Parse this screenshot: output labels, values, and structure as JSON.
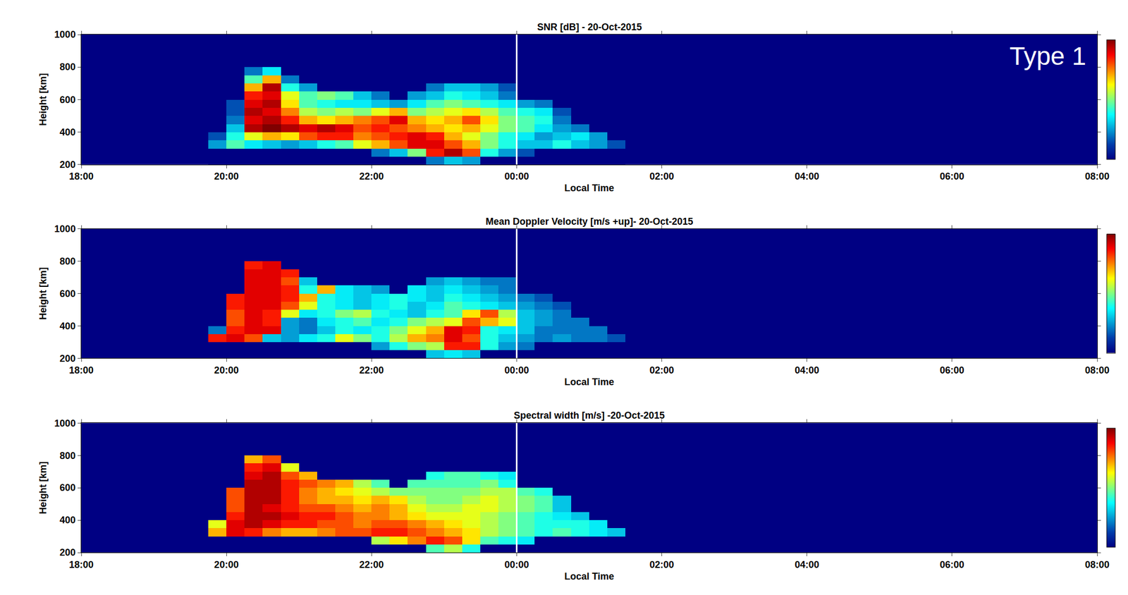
{
  "chart_data": [
    {
      "type": "heatmap",
      "title": "SNR [dB] - 20-Oct-2015",
      "annotation": "Type 1",
      "x_label": "Local Time",
      "y_label": "Height [km]",
      "xlim": [
        18,
        32
      ],
      "xticks": [
        {
          "value": 18,
          "label": "18:00"
        },
        {
          "value": 20,
          "label": "20:00"
        },
        {
          "value": 22,
          "label": "22:00"
        },
        {
          "value": 24,
          "label": "00:00"
        },
        {
          "value": 26,
          "label": "02:00"
        },
        {
          "value": 28,
          "label": "04:00"
        },
        {
          "value": 30,
          "label": "06:00"
        },
        {
          "value": 32,
          "label": "08:00"
        }
      ],
      "ylim": [
        200,
        1000
      ],
      "yticks": [
        200,
        400,
        600,
        800,
        1000
      ],
      "vline_x": 24,
      "zlim": [
        0,
        20
      ],
      "x": [
        19.75,
        20,
        20.25,
        20.5,
        20.75,
        21,
        21.25,
        21.5,
        21.75,
        22,
        22.25,
        22.5,
        22.75,
        23,
        23.25,
        23.5,
        23.75,
        24,
        24.25,
        24.5,
        24.75,
        25,
        25.25,
        25.5
      ],
      "y": [
        200,
        250,
        300,
        350,
        400,
        450,
        500,
        550,
        600,
        650,
        700,
        750,
        800
      ],
      "z": [
        [
          0,
          0,
          0,
          0,
          0,
          0,
          0,
          0,
          0,
          0,
          0,
          0,
          4,
          6,
          5,
          0,
          0,
          0,
          0,
          0,
          0,
          0,
          0
        ],
        [
          0,
          0,
          0,
          0,
          0,
          0,
          0,
          0,
          0,
          4,
          6,
          10,
          17,
          19,
          16,
          8,
          5,
          3,
          0,
          0,
          0,
          0,
          0
        ],
        [
          5,
          9,
          7,
          6,
          5,
          6,
          8,
          9,
          12,
          14,
          16,
          18,
          18,
          16,
          14,
          10,
          8,
          6,
          6,
          8,
          6,
          5,
          3
        ],
        [
          3,
          8,
          12,
          14,
          13,
          16,
          17,
          17,
          15,
          16,
          17,
          18,
          17,
          14,
          12,
          10,
          8,
          7,
          5,
          6,
          7,
          5,
          0
        ],
        [
          0,
          6,
          19,
          20,
          19,
          18,
          19,
          18,
          16,
          17,
          16,
          15,
          14,
          13,
          14,
          12,
          10,
          9,
          7,
          5,
          4,
          0,
          0
        ],
        [
          0,
          4,
          18,
          19,
          17,
          14,
          13,
          14,
          15,
          16,
          18,
          14,
          13,
          14,
          16,
          13,
          10,
          9,
          8,
          4,
          0,
          0,
          0
        ],
        [
          0,
          3,
          19,
          18,
          15,
          11,
          10,
          11,
          10,
          12,
          14,
          10,
          11,
          12,
          13,
          11,
          9,
          8,
          7,
          3,
          0,
          0,
          0
        ],
        [
          0,
          3,
          18,
          19,
          13,
          9,
          8,
          7,
          7,
          6,
          5,
          7,
          9,
          10,
          9,
          8,
          7,
          5,
          4,
          0,
          0,
          0,
          0
        ],
        [
          0,
          0,
          17,
          18,
          12,
          9,
          10,
          9,
          6,
          4,
          0,
          5,
          6,
          8,
          7,
          6,
          4,
          0,
          0,
          0,
          0,
          0,
          0
        ],
        [
          0,
          0,
          14,
          19,
          8,
          5,
          0,
          0,
          0,
          0,
          0,
          0,
          4,
          6,
          6,
          5,
          3,
          0,
          0,
          0,
          0,
          0,
          0
        ],
        [
          0,
          0,
          9,
          14,
          4,
          0,
          0,
          0,
          0,
          0,
          0,
          0,
          0,
          0,
          0,
          0,
          0,
          0,
          0,
          0,
          0,
          0,
          0
        ],
        [
          0,
          0,
          4,
          7,
          0,
          0,
          0,
          0,
          0,
          0,
          0,
          0,
          0,
          0,
          0,
          0,
          0,
          0,
          0,
          0,
          0,
          0,
          0
        ]
      ]
    },
    {
      "type": "heatmap",
      "title": "Mean Doppler Velocity [m/s +up]- 20-Oct-2015",
      "x_label": "Local Time",
      "y_label": "Height [km]",
      "xlim": [
        18,
        32
      ],
      "xticks": [
        {
          "value": 18,
          "label": "18:00"
        },
        {
          "value": 20,
          "label": "20:00"
        },
        {
          "value": 22,
          "label": "22:00"
        },
        {
          "value": 24,
          "label": "00:00"
        },
        {
          "value": 26,
          "label": "02:00"
        },
        {
          "value": 28,
          "label": "04:00"
        },
        {
          "value": 30,
          "label": "06:00"
        },
        {
          "value": 32,
          "label": "08:00"
        }
      ],
      "ylim": [
        200,
        1000
      ],
      "yticks": [
        200,
        400,
        600,
        800,
        1000
      ],
      "vline_x": 24,
      "zlim": [
        -50,
        50
      ],
      "x": [
        19.75,
        20,
        20.25,
        20.5,
        20.75,
        21,
        21.25,
        21.5,
        21.75,
        22,
        22.25,
        22.5,
        22.75,
        23,
        23.25,
        23.5,
        23.75,
        24,
        24.25,
        24.5,
        24.75,
        25,
        25.25,
        25.5
      ],
      "y": [
        200,
        250,
        300,
        350,
        400,
        450,
        500,
        550,
        600,
        650,
        700,
        750,
        800
      ],
      "z": [
        [
          -50,
          -50,
          -50,
          -50,
          -50,
          -50,
          -50,
          -50,
          -50,
          -50,
          -50,
          -50,
          -20,
          -15,
          -20,
          -50,
          -50,
          -50,
          -50,
          -50,
          -50,
          -50,
          -50
        ],
        [
          -50,
          -50,
          -50,
          -50,
          -50,
          -50,
          -50,
          -50,
          -50,
          -25,
          -10,
          0,
          5,
          35,
          35,
          -10,
          -25,
          -30,
          -50,
          -50,
          -50,
          -50,
          -50
        ],
        [
          35,
          40,
          30,
          -20,
          -25,
          -15,
          -10,
          10,
          0,
          -10,
          5,
          20,
          25,
          40,
          30,
          -10,
          -20,
          -25,
          -30,
          -25,
          -30,
          -30,
          -35
        ],
        [
          -30,
          35,
          40,
          40,
          -25,
          -30,
          -20,
          -10,
          -15,
          -10,
          0,
          10,
          20,
          40,
          35,
          -10,
          -15,
          -20,
          -30,
          -30,
          -30,
          -30,
          -50
        ],
        [
          -50,
          30,
          40,
          35,
          -25,
          -30,
          -15,
          -10,
          -5,
          -15,
          -10,
          0,
          5,
          10,
          30,
          20,
          10,
          -20,
          -25,
          -30,
          -30,
          -50,
          -50
        ],
        [
          -50,
          30,
          40,
          35,
          10,
          -15,
          -10,
          0,
          5,
          -10,
          -15,
          -20,
          -10,
          -5,
          15,
          30,
          5,
          -20,
          -25,
          -30,
          -50,
          -50,
          -50
        ],
        [
          -50,
          35,
          40,
          40,
          30,
          10,
          -10,
          -15,
          -20,
          -15,
          -10,
          -20,
          -15,
          -5,
          -10,
          -15,
          -20,
          -25,
          -30,
          -35,
          -50,
          -50,
          -50
        ],
        [
          -50,
          35,
          40,
          40,
          35,
          20,
          -10,
          -15,
          -20,
          -15,
          -10,
          -15,
          -20,
          -10,
          -15,
          -20,
          -25,
          -30,
          -35,
          -50,
          -50,
          -50,
          -50
        ],
        [
          -50,
          -50,
          40,
          40,
          35,
          -10,
          20,
          -15,
          -20,
          -25,
          -50,
          -15,
          -20,
          -15,
          -20,
          -25,
          -30,
          -50,
          -50,
          -50,
          -50,
          -50,
          -50
        ],
        [
          -50,
          -50,
          40,
          40,
          30,
          -20,
          -50,
          -50,
          -50,
          -50,
          -50,
          -50,
          -25,
          -20,
          -25,
          -30,
          -30,
          -50,
          -50,
          -50,
          -50,
          -50,
          -50
        ],
        [
          -50,
          -50,
          40,
          40,
          35,
          -50,
          -50,
          -50,
          -50,
          -50,
          -50,
          -50,
          -50,
          -50,
          -50,
          -50,
          -50,
          -50,
          -50,
          -50,
          -50,
          -50,
          -50
        ],
        [
          -50,
          -50,
          35,
          40,
          -50,
          -50,
          -50,
          -50,
          -50,
          -50,
          -50,
          -50,
          -50,
          -50,
          -50,
          -50,
          -50,
          -50,
          -50,
          -50,
          -50,
          -50,
          -50
        ]
      ]
    },
    {
      "type": "heatmap",
      "title": "Spectral width [m/s] -20-Oct-2015",
      "x_label": "Local Time",
      "y_label": "Height [km]",
      "xlim": [
        18,
        32
      ],
      "xticks": [
        {
          "value": 18,
          "label": "18:00"
        },
        {
          "value": 20,
          "label": "20:00"
        },
        {
          "value": 22,
          "label": "22:00"
        },
        {
          "value": 24,
          "label": "00:00"
        },
        {
          "value": 26,
          "label": "02:00"
        },
        {
          "value": 28,
          "label": "04:00"
        },
        {
          "value": 30,
          "label": "06:00"
        },
        {
          "value": 32,
          "label": "08:00"
        }
      ],
      "ylim": [
        200,
        1000
      ],
      "yticks": [
        200,
        400,
        600,
        800,
        1000
      ],
      "vline_x": 24,
      "zlim": [
        0,
        100
      ],
      "x": [
        19.75,
        20,
        20.25,
        20.5,
        20.75,
        21,
        21.25,
        21.5,
        21.75,
        22,
        22.25,
        22.5,
        22.75,
        23,
        23.25,
        23.5,
        23.75,
        24,
        24.25,
        24.5,
        24.75,
        25,
        25.25,
        25.5
      ],
      "y": [
        200,
        250,
        300,
        350,
        400,
        450,
        500,
        550,
        600,
        650,
        700,
        750,
        800
      ],
      "z": [
        [
          0,
          0,
          0,
          0,
          0,
          0,
          0,
          0,
          0,
          0,
          0,
          0,
          45,
          55,
          40,
          0,
          0,
          0,
          0,
          0,
          0,
          0,
          0
        ],
        [
          0,
          0,
          0,
          0,
          0,
          0,
          0,
          0,
          0,
          55,
          65,
          75,
          85,
          80,
          65,
          45,
          40,
          35,
          0,
          0,
          0,
          0,
          0
        ],
        [
          70,
          90,
          85,
          75,
          70,
          70,
          75,
          80,
          80,
          85,
          85,
          80,
          75,
          70,
          65,
          55,
          50,
          45,
          40,
          45,
          40,
          35,
          30
        ],
        [
          60,
          90,
          95,
          90,
          85,
          85,
          80,
          80,
          75,
          80,
          80,
          75,
          70,
          65,
          60,
          55,
          50,
          45,
          40,
          40,
          40,
          35,
          0
        ],
        [
          0,
          85,
          95,
          95,
          90,
          85,
          85,
          80,
          75,
          75,
          70,
          65,
          60,
          60,
          60,
          55,
          50,
          45,
          40,
          35,
          30,
          0,
          0
        ],
        [
          0,
          80,
          95,
          90,
          85,
          80,
          80,
          75,
          70,
          75,
          70,
          60,
          55,
          55,
          60,
          60,
          55,
          50,
          45,
          30,
          0,
          0,
          0
        ],
        [
          0,
          80,
          95,
          95,
          85,
          75,
          70,
          70,
          65,
          70,
          65,
          55,
          50,
          50,
          55,
          60,
          55,
          50,
          45,
          30,
          0,
          0,
          0
        ],
        [
          0,
          80,
          95,
          95,
          85,
          75,
          70,
          65,
          60,
          55,
          50,
          50,
          50,
          50,
          50,
          55,
          55,
          45,
          40,
          0,
          0,
          0,
          0
        ],
        [
          0,
          0,
          95,
          95,
          85,
          80,
          75,
          70,
          55,
          45,
          0,
          45,
          45,
          45,
          45,
          50,
          40,
          0,
          0,
          0,
          0,
          0,
          0
        ],
        [
          0,
          0,
          90,
          95,
          80,
          70,
          0,
          0,
          0,
          0,
          0,
          0,
          40,
          45,
          45,
          40,
          35,
          0,
          0,
          0,
          0,
          0,
          0
        ],
        [
          0,
          0,
          85,
          90,
          60,
          0,
          0,
          0,
          0,
          0,
          0,
          0,
          0,
          0,
          0,
          0,
          0,
          0,
          0,
          0,
          0,
          0,
          0
        ],
        [
          0,
          0,
          70,
          80,
          0,
          0,
          0,
          0,
          0,
          0,
          0,
          0,
          0,
          0,
          0,
          0,
          0,
          0,
          0,
          0,
          0,
          0,
          0
        ]
      ]
    }
  ]
}
